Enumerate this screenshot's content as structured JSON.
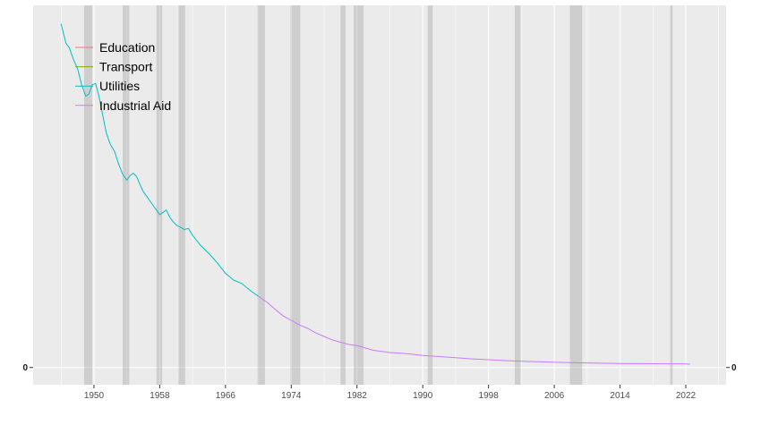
{
  "chart_data": {
    "type": "line",
    "title": "",
    "xlabel": "",
    "ylabel": "",
    "xlim": [
      1942.6,
      2026.9
    ],
    "ylim": [
      -1.5,
      31.5
    ],
    "x_ticks": [
      1950,
      1958,
      1966,
      1974,
      1982,
      1990,
      1998,
      2006,
      2014,
      2022
    ],
    "y_ticks": [
      0
    ],
    "y_tick_labels": [
      "0"
    ],
    "grid": true,
    "legend_position": "top-left",
    "recession_bands": [
      [
        1948.8,
        1949.8
      ],
      [
        1953.5,
        1954.3
      ],
      [
        1957.6,
        1958.3
      ],
      [
        1960.3,
        1961.1
      ],
      [
        1969.9,
        1970.8
      ],
      [
        1973.9,
        1975.1
      ],
      [
        1980.0,
        1980.6
      ],
      [
        1981.6,
        1982.8
      ],
      [
        1990.6,
        1991.2
      ],
      [
        2001.2,
        2001.9
      ],
      [
        2007.9,
        2009.4
      ],
      [
        2020.1,
        2020.4
      ]
    ],
    "series": [
      {
        "name": "Education",
        "color": "#F8766D",
        "x": [],
        "y": []
      },
      {
        "name": "Transport",
        "color": "#7CAE00",
        "x": [],
        "y": []
      },
      {
        "name": "Utilities",
        "color": "#00BFC4",
        "x": [
          1946.0,
          1946.6,
          1947.0,
          1947.5,
          1948.0,
          1948.5,
          1949.0,
          1949.4,
          1949.8,
          1950.2,
          1950.6,
          1951.0,
          1951.5,
          1952.0,
          1952.5,
          1953.0,
          1953.5,
          1954.0,
          1954.4,
          1954.8,
          1955.2,
          1955.6,
          1956.0,
          1956.5,
          1957.0,
          1957.5,
          1958.0,
          1958.4,
          1958.8,
          1959.2,
          1959.6,
          1960.0,
          1960.5,
          1961.0,
          1961.5,
          1962.0,
          1963.0,
          1964.0,
          1965.0,
          1966.0,
          1967.0,
          1968.0,
          1969.0,
          1970.0
        ],
        "y": [
          29.9,
          28.2,
          27.8,
          26.8,
          26.0,
          24.6,
          23.6,
          23.8,
          24.6,
          24.7,
          23.6,
          22.2,
          20.4,
          19.4,
          18.8,
          17.7,
          16.8,
          16.3,
          16.7,
          16.9,
          16.6,
          15.9,
          15.3,
          14.8,
          14.3,
          13.8,
          13.3,
          13.5,
          13.7,
          13.1,
          12.7,
          12.4,
          12.2,
          12.0,
          12.1,
          11.5,
          10.6,
          9.9,
          9.1,
          8.2,
          7.6,
          7.3,
          6.7,
          6.2
        ]
      },
      {
        "name": "Industrial Aid",
        "color": "#C77CFF",
        "x": [
          1970.0,
          1971.0,
          1972.0,
          1973.0,
          1974.0,
          1975.0,
          1976.0,
          1977.0,
          1978.0,
          1979.0,
          1980.0,
          1981.0,
          1982.0,
          1983.0,
          1984.0,
          1985.0,
          1986.0,
          1988.0,
          1990.0,
          1992.0,
          1994.0,
          1996.0,
          1998.0,
          2000.0,
          2002.0,
          2004.0,
          2006.0,
          2008.0,
          2010.0,
          2012.0,
          2014.0,
          2016.0,
          2018.0,
          2020.0,
          2022.0,
          2022.5
        ],
        "y": [
          6.2,
          5.7,
          5.1,
          4.5,
          4.1,
          3.7,
          3.4,
          3.0,
          2.7,
          2.4,
          2.2,
          2.0,
          1.9,
          1.7,
          1.5,
          1.4,
          1.3,
          1.2,
          1.05,
          0.95,
          0.85,
          0.75,
          0.68,
          0.6,
          0.55,
          0.5,
          0.45,
          0.42,
          0.4,
          0.37,
          0.35,
          0.34,
          0.33,
          0.32,
          0.31,
          0.28
        ]
      }
    ]
  }
}
